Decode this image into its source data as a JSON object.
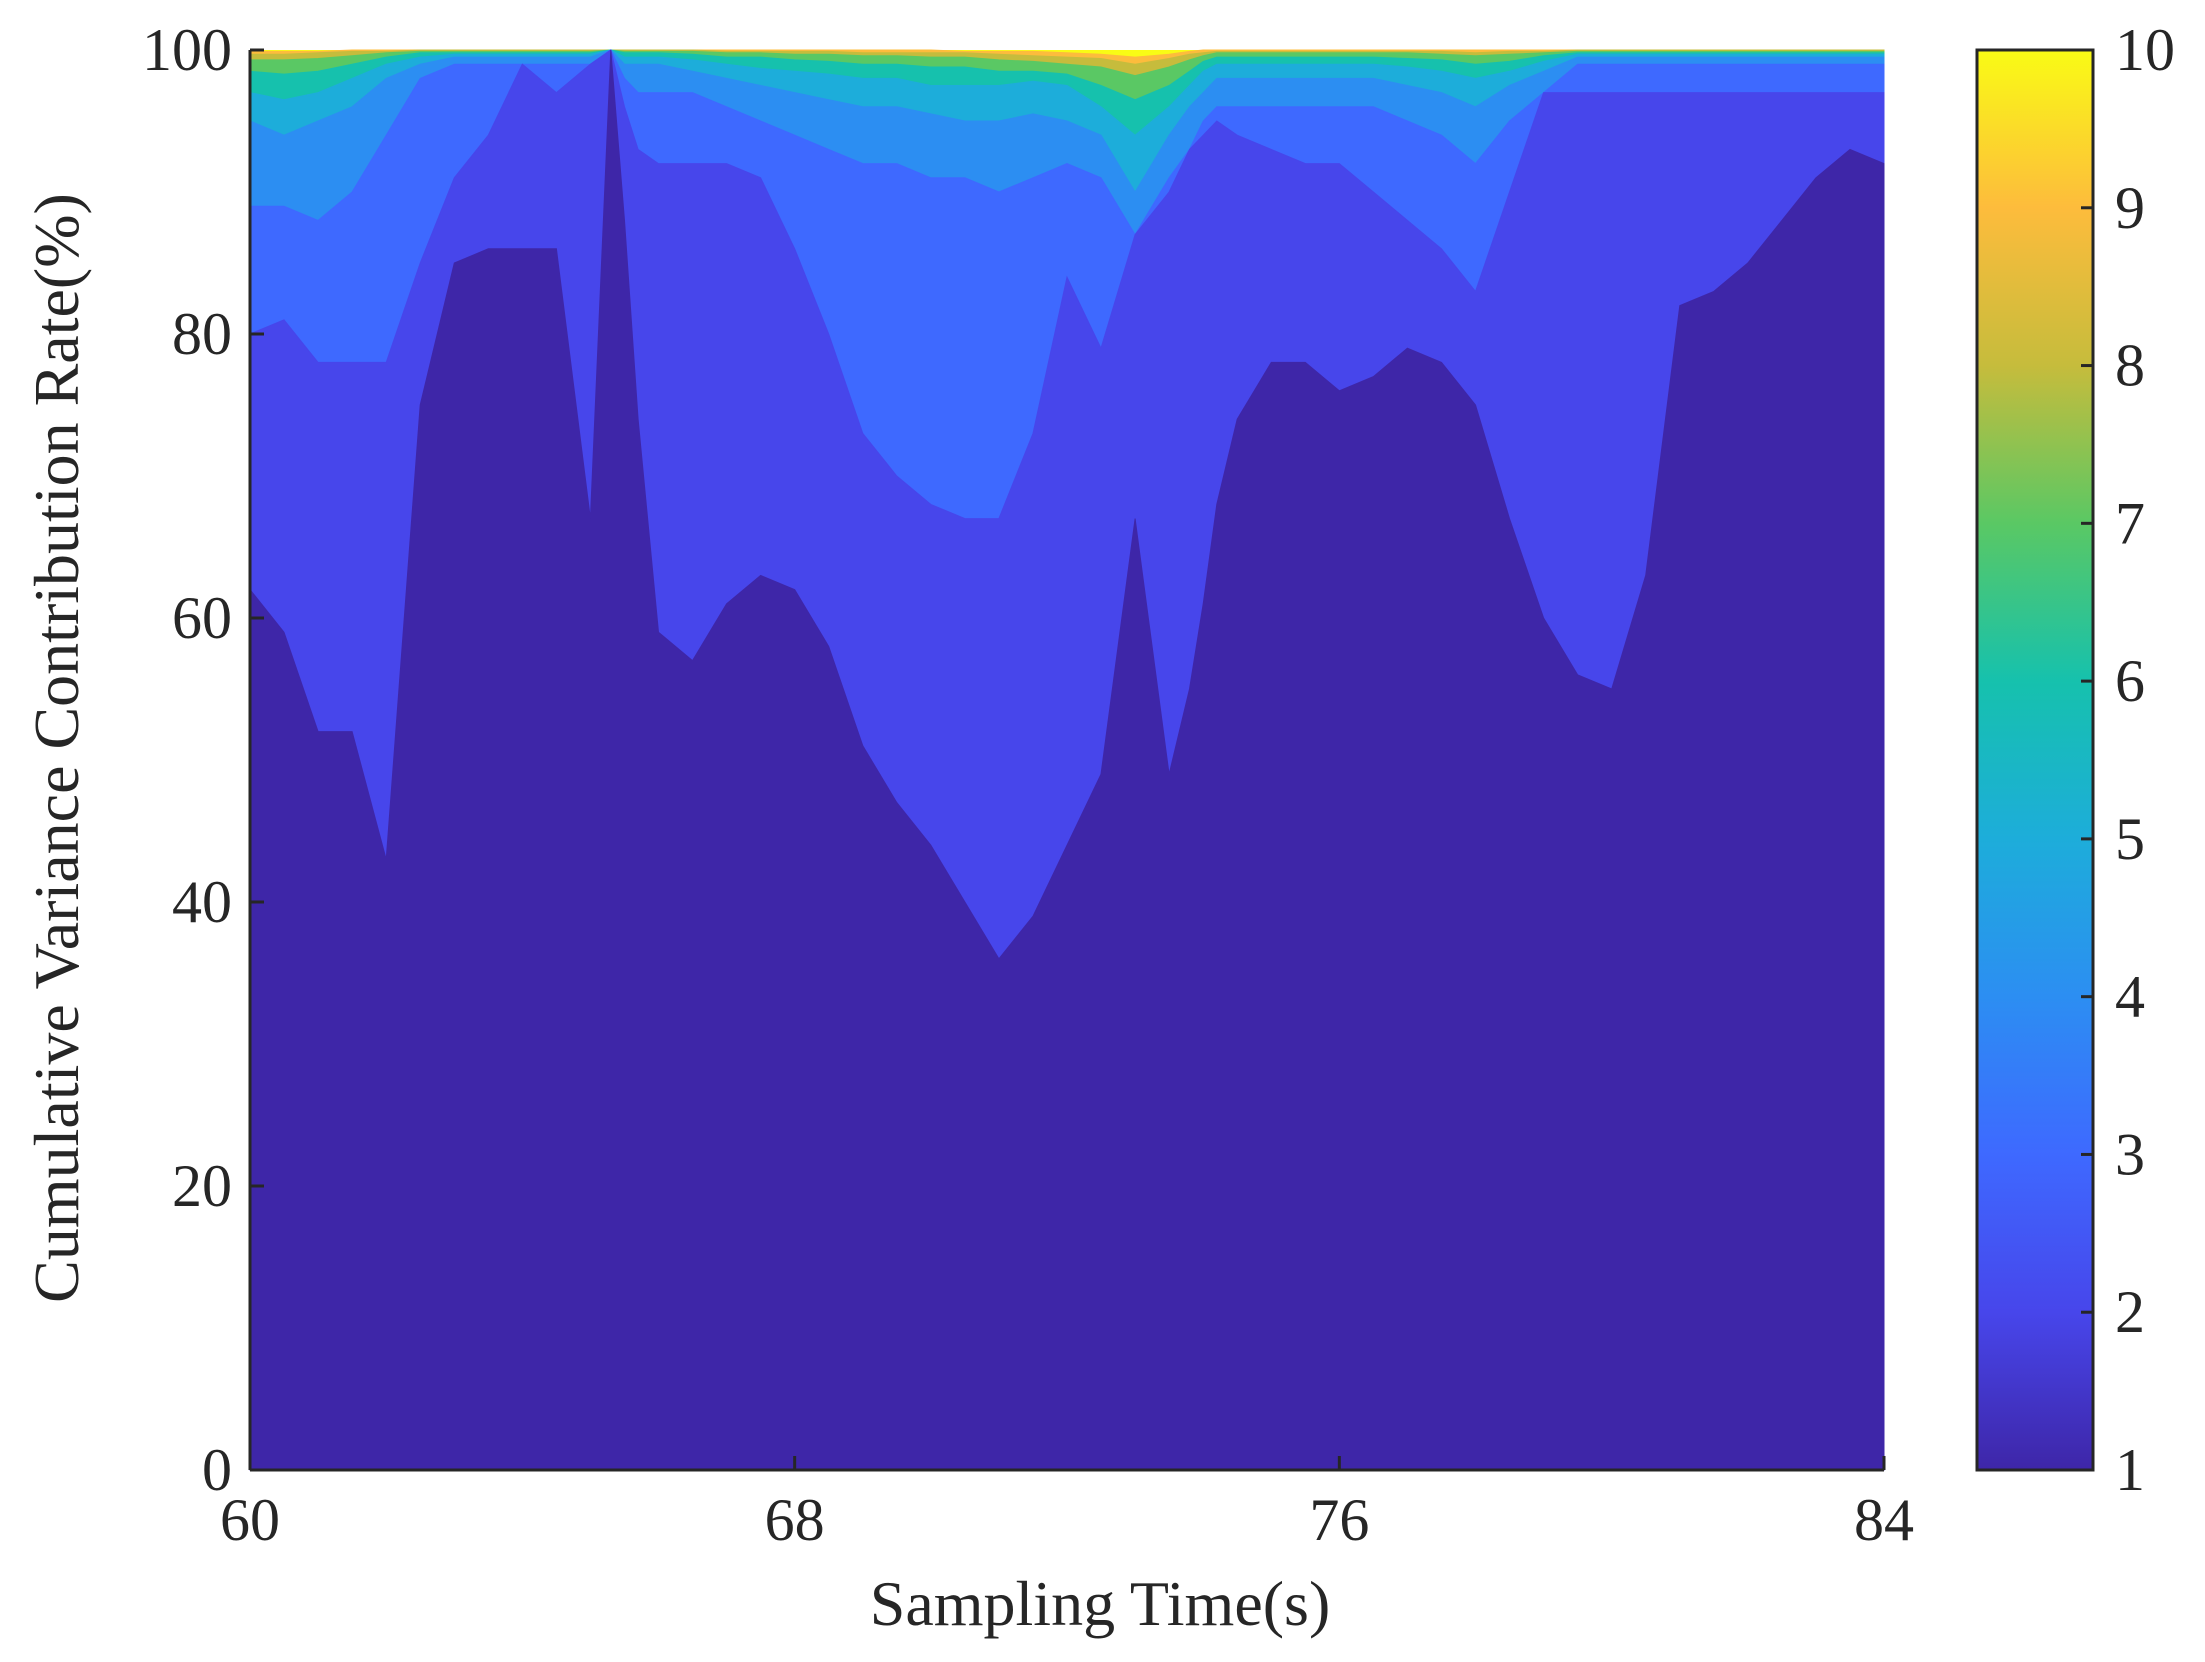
{
  "chart_data": {
    "type": "area",
    "xlabel": "Sampling Time(s)",
    "ylabel": "Cumulative Variance  Contribution Rate(%)",
    "xlim": [
      60,
      84
    ],
    "ylim": [
      0,
      100
    ],
    "xticks": [
      60,
      68,
      76,
      84
    ],
    "yticks": [
      0,
      20,
      40,
      60,
      80,
      100
    ],
    "grid": false,
    "colorbar": {
      "label_ticks": [
        1,
        2,
        3,
        4,
        5,
        6,
        7,
        8,
        9,
        10
      ],
      "range": [
        1,
        10
      ],
      "colors": [
        "#3e26a8",
        "#4746eb",
        "#3e69ff",
        "#2c8ef2",
        "#1dadda",
        "#16c1ad",
        "#5ac864",
        "#c6bc3c",
        "#fdbc3c",
        "#f9fb15"
      ]
    },
    "x": [
      60,
      60.5,
      61,
      61.5,
      62,
      62.5,
      63,
      63.5,
      64,
      64.5,
      65,
      65.3,
      65.5,
      65.7,
      66,
      66.5,
      67,
      67.5,
      68,
      68.5,
      69,
      69.5,
      70,
      70.5,
      71,
      71.5,
      72,
      72.5,
      73,
      73.5,
      73.8,
      74,
      74.2,
      74.5,
      75,
      75.5,
      76,
      76.5,
      77,
      77.5,
      78,
      78.5,
      79,
      79.5,
      80,
      80.5,
      81,
      81.5,
      82,
      82.5,
      83,
      83.5,
      84
    ],
    "series": [
      {
        "level": 1,
        "values": [
          62,
          59,
          52,
          52,
          43,
          75,
          85,
          86,
          86,
          86,
          67,
          100,
          88,
          74,
          59,
          57,
          61,
          63,
          62,
          58,
          51,
          47,
          44,
          40,
          36,
          39,
          44,
          49,
          67,
          49,
          55,
          61,
          68,
          74,
          78,
          78,
          76,
          77,
          79,
          78,
          75,
          67,
          60,
          56,
          55,
          63,
          82,
          83,
          85,
          88,
          91,
          93,
          92
        ]
      },
      {
        "level": 2,
        "values": [
          80,
          81,
          78,
          78,
          78,
          85,
          91,
          94,
          99,
          97,
          99,
          100,
          96,
          93,
          92,
          92,
          92,
          91,
          86,
          80,
          73,
          70,
          68,
          67,
          67,
          73,
          84,
          79,
          87,
          90,
          93,
          94,
          95,
          94,
          93,
          92,
          92,
          90,
          88,
          86,
          83,
          90,
          97,
          97,
          97,
          97,
          97,
          97,
          97,
          97,
          97,
          97,
          97
        ]
      },
      {
        "level": 3,
        "values": [
          89,
          89,
          88,
          90,
          94,
          98,
          99,
          99,
          99,
          99,
          99,
          100,
          98,
          97,
          97,
          97,
          96,
          95,
          94,
          93,
          92,
          92,
          91,
          91,
          90,
          91,
          92,
          91,
          87,
          91,
          93,
          95,
          96,
          96,
          96,
          96,
          96,
          96,
          95,
          94,
          92,
          95,
          97,
          99,
          99,
          99,
          99,
          99,
          99,
          99,
          99,
          99,
          99
        ]
      },
      {
        "level": 4,
        "values": [
          95,
          94,
          95,
          96,
          98,
          99,
          99.5,
          99.5,
          99.5,
          99.5,
          99.5,
          100,
          99,
          99,
          99,
          98.5,
          98,
          97.5,
          97,
          96.5,
          96,
          96,
          95.5,
          95,
          95,
          95.5,
          95,
          94,
          90,
          94,
          96,
          97,
          98,
          98,
          98,
          98,
          98,
          98,
          97.5,
          97,
          96,
          97.5,
          98.5,
          99.5,
          99.5,
          99.5,
          99.5,
          99.5,
          99.5,
          99.5,
          99.5,
          99.5,
          99.5
        ]
      },
      {
        "level": 5,
        "values": [
          97,
          96.5,
          97,
          98,
          99,
          99.5,
          99.7,
          99.7,
          99.7,
          99.7,
          99.7,
          100,
          99.5,
          99.5,
          99.5,
          99.3,
          99,
          98.7,
          98.5,
          98.3,
          98,
          98,
          97.5,
          97.5,
          97.5,
          97.8,
          97.5,
          96,
          94,
          96,
          97.5,
          98.5,
          99,
          99,
          99,
          99,
          99,
          99,
          98.8,
          98.5,
          98,
          98.5,
          99.2,
          99.7,
          99.7,
          99.7,
          99.7,
          99.7,
          99.7,
          99.7,
          99.7,
          99.7,
          99.7
        ]
      },
      {
        "level": 6,
        "values": [
          98.5,
          98.3,
          98.5,
          99,
          99.5,
          99.8,
          99.8,
          99.8,
          99.8,
          99.8,
          99.8,
          100,
          99.8,
          99.8,
          99.8,
          99.7,
          99.5,
          99.5,
          99.3,
          99.2,
          99,
          99,
          98.8,
          98.8,
          98.5,
          98.5,
          98.3,
          97.5,
          96.5,
          97.5,
          98.5,
          99.2,
          99.5,
          99.5,
          99.5,
          99.5,
          99.5,
          99.5,
          99.4,
          99.3,
          99,
          99.2,
          99.6,
          99.8,
          99.8,
          99.8,
          99.8,
          99.8,
          99.8,
          99.8,
          99.8,
          99.8,
          99.8
        ]
      },
      {
        "level": 7,
        "values": [
          99.3,
          99.3,
          99.4,
          99.6,
          99.8,
          99.9,
          99.9,
          99.9,
          99.9,
          99.9,
          99.9,
          100,
          99.9,
          99.9,
          99.9,
          99.9,
          99.8,
          99.8,
          99.7,
          99.7,
          99.6,
          99.6,
          99.5,
          99.5,
          99.3,
          99.2,
          99,
          98.8,
          98.2,
          98.8,
          99.3,
          99.6,
          99.8,
          99.8,
          99.8,
          99.8,
          99.8,
          99.8,
          99.8,
          99.7,
          99.6,
          99.7,
          99.8,
          99.9,
          99.9,
          99.9,
          99.9,
          99.9,
          99.9,
          99.9,
          99.9,
          99.9,
          99.9
        ]
      },
      {
        "level": 8,
        "values": [
          99.7,
          99.7,
          99.8,
          99.9,
          99.9,
          100,
          100,
          100,
          100,
          100,
          100,
          100,
          100,
          100,
          100,
          100,
          99.9,
          99.9,
          99.9,
          99.9,
          99.8,
          99.8,
          99.8,
          99.8,
          99.7,
          99.6,
          99.5,
          99.4,
          99,
          99.4,
          99.7,
          99.8,
          99.9,
          99.9,
          99.9,
          99.9,
          99.9,
          99.9,
          99.9,
          99.9,
          99.8,
          99.9,
          99.9,
          100,
          100,
          100,
          100,
          100,
          100,
          100,
          100,
          100,
          100
        ]
      },
      {
        "level": 9,
        "values": [
          99.9,
          99.9,
          99.9,
          100,
          100,
          100,
          100,
          100,
          100,
          100,
          100,
          100,
          100,
          100,
          100,
          100,
          100,
          100,
          100,
          100,
          100,
          100,
          100,
          99.9,
          99.9,
          99.9,
          99.8,
          99.7,
          99.5,
          99.7,
          99.9,
          100,
          100,
          100,
          100,
          100,
          100,
          100,
          100,
          100,
          100,
          100,
          100,
          100,
          100,
          100,
          100,
          100,
          100,
          100,
          100,
          100,
          100
        ]
      }
    ]
  }
}
